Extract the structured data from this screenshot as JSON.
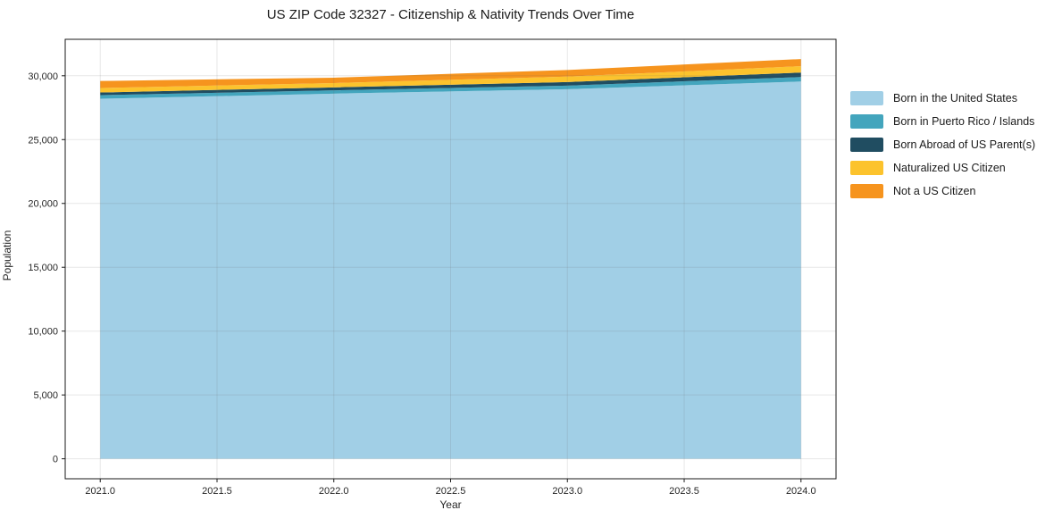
{
  "title": "US ZIP Code 32327 - Citizenship & Nativity Trends Over Time",
  "axes": {
    "xlabel": "Year",
    "ylabel": "Population"
  },
  "chart_data": {
    "type": "area",
    "stacked": true,
    "title": "US ZIP Code 32327 - Citizenship & Nativity Trends Over Time",
    "xlabel": "Year",
    "ylabel": "Population",
    "x": [
      2021,
      2022,
      2023,
      2024
    ],
    "series": [
      {
        "name": "Born in the United States",
        "color": "#a1cfe6",
        "values": [
          28200,
          28600,
          28950,
          29550
        ]
      },
      {
        "name": "Born in Puerto Rico / Islands",
        "color": "#43a5bd",
        "values": [
          280,
          260,
          280,
          350
        ]
      },
      {
        "name": "Born Abroad of US Parent(s)",
        "color": "#204d61",
        "values": [
          210,
          230,
          280,
          350
        ]
      },
      {
        "name": "Naturalized US Citizen",
        "color": "#fcc32d",
        "values": [
          350,
          340,
          420,
          500
        ]
      },
      {
        "name": "Not a US Citizen",
        "color": "#f6941e",
        "values": [
          550,
          420,
          520,
          560
        ]
      }
    ],
    "totals": [
      29590,
      29850,
      30450,
      31310
    ],
    "xlim": [
      2020.85,
      2024.15
    ],
    "ylim": [
      -1565,
      32855
    ],
    "x_ticks": [
      {
        "value": 2021.0,
        "label": "2021.0"
      },
      {
        "value": 2021.5,
        "label": "2021.5"
      },
      {
        "value": 2022.0,
        "label": "2022.0"
      },
      {
        "value": 2022.5,
        "label": "2022.5"
      },
      {
        "value": 2023.0,
        "label": "2023.0"
      },
      {
        "value": 2023.5,
        "label": "2023.5"
      },
      {
        "value": 2024.0,
        "label": "2024.0"
      }
    ],
    "y_ticks": [
      {
        "value": 0,
        "label": "0"
      },
      {
        "value": 5000,
        "label": "5,000"
      },
      {
        "value": 10000,
        "label": "10,000"
      },
      {
        "value": 15000,
        "label": "15,000"
      },
      {
        "value": 20000,
        "label": "20,000"
      },
      {
        "value": 25000,
        "label": "25,000"
      },
      {
        "value": 30000,
        "label": "30,000"
      }
    ],
    "grid": true,
    "legend_position": "right"
  },
  "style": {
    "background": "#ffffff",
    "grid_color": "#6a6a6a",
    "grid_opacity": 0.16,
    "spine_color": "#1a1a1a",
    "tick_color": "#1a1a1a",
    "text_color": "#262626"
  }
}
